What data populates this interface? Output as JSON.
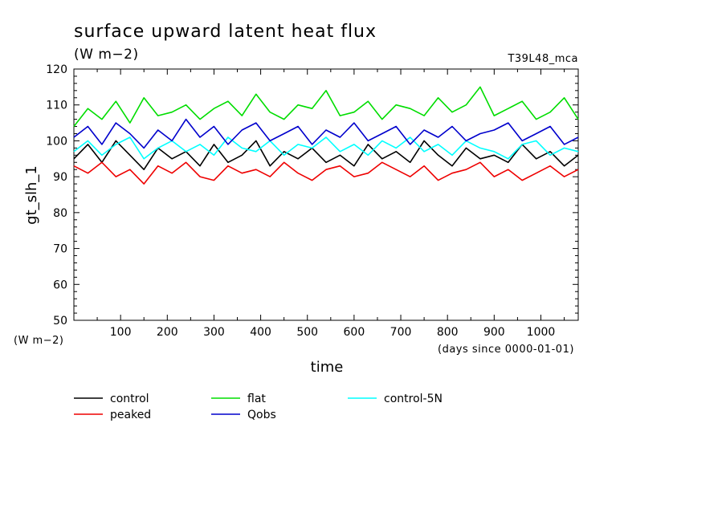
{
  "chart_data": {
    "type": "line",
    "title": "surface upward latent heat flux",
    "subtitle": "(W m−2)",
    "run_label": "T39L48_mca",
    "xlabel": "time",
    "x_units": "(days since 0000-01-01)",
    "ylabel": "gt_slh_1",
    "y_units": "(W m−2)",
    "xlim": [
      0,
      1080
    ],
    "ylim": [
      50,
      120
    ],
    "x_ticks": [
      100,
      200,
      300,
      400,
      500,
      600,
      700,
      800,
      900,
      1000
    ],
    "y_ticks": [
      50,
      60,
      70,
      80,
      90,
      100,
      110,
      120
    ],
    "grid": false,
    "legend_position": "bottom",
    "x": [
      0,
      30,
      60,
      90,
      120,
      150,
      180,
      210,
      240,
      270,
      300,
      330,
      360,
      390,
      420,
      450,
      480,
      510,
      540,
      570,
      600,
      630,
      660,
      690,
      720,
      750,
      780,
      810,
      840,
      870,
      900,
      930,
      960,
      990,
      1020,
      1050,
      1080
    ],
    "series": [
      {
        "name": "control",
        "color": "#000000",
        "values": [
          95,
          99,
          94,
          100,
          96,
          92,
          98,
          95,
          97,
          93,
          99,
          94,
          96,
          100,
          93,
          97,
          95,
          98,
          94,
          96,
          93,
          99,
          95,
          97,
          94,
          100,
          96,
          93,
          98,
          95,
          96,
          94,
          99,
          95,
          97,
          93,
          96
        ]
      },
      {
        "name": "flat",
        "color": "#00dd00",
        "values": [
          104,
          109,
          106,
          111,
          105,
          112,
          107,
          108,
          110,
          106,
          109,
          111,
          107,
          113,
          108,
          106,
          110,
          109,
          114,
          107,
          108,
          111,
          106,
          110,
          109,
          107,
          112,
          108,
          110,
          115,
          107,
          109,
          111,
          106,
          108,
          112,
          106
        ]
      },
      {
        "name": "control-5N",
        "color": "#00ffff",
        "values": [
          97,
          100,
          96,
          99,
          101,
          95,
          98,
          100,
          97,
          99,
          96,
          101,
          98,
          97,
          100,
          96,
          99,
          98,
          101,
          97,
          99,
          96,
          100,
          98,
          101,
          97,
          99,
          96,
          100,
          98,
          97,
          95,
          99,
          100,
          96,
          98,
          97
        ]
      },
      {
        "name": "peaked",
        "color": "#ee0000",
        "values": [
          93,
          91,
          94,
          90,
          92,
          88,
          93,
          91,
          94,
          90,
          89,
          93,
          91,
          92,
          90,
          94,
          91,
          89,
          92,
          93,
          90,
          91,
          94,
          92,
          90,
          93,
          89,
          91,
          92,
          94,
          90,
          92,
          89,
          91,
          93,
          90,
          92
        ]
      },
      {
        "name": "Qobs",
        "color": "#0000cc",
        "values": [
          101,
          104,
          99,
          105,
          102,
          98,
          103,
          100,
          106,
          101,
          104,
          99,
          103,
          105,
          100,
          102,
          104,
          99,
          103,
          101,
          105,
          100,
          102,
          104,
          99,
          103,
          101,
          104,
          100,
          102,
          103,
          105,
          100,
          102,
          104,
          99,
          101
        ]
      }
    ]
  }
}
